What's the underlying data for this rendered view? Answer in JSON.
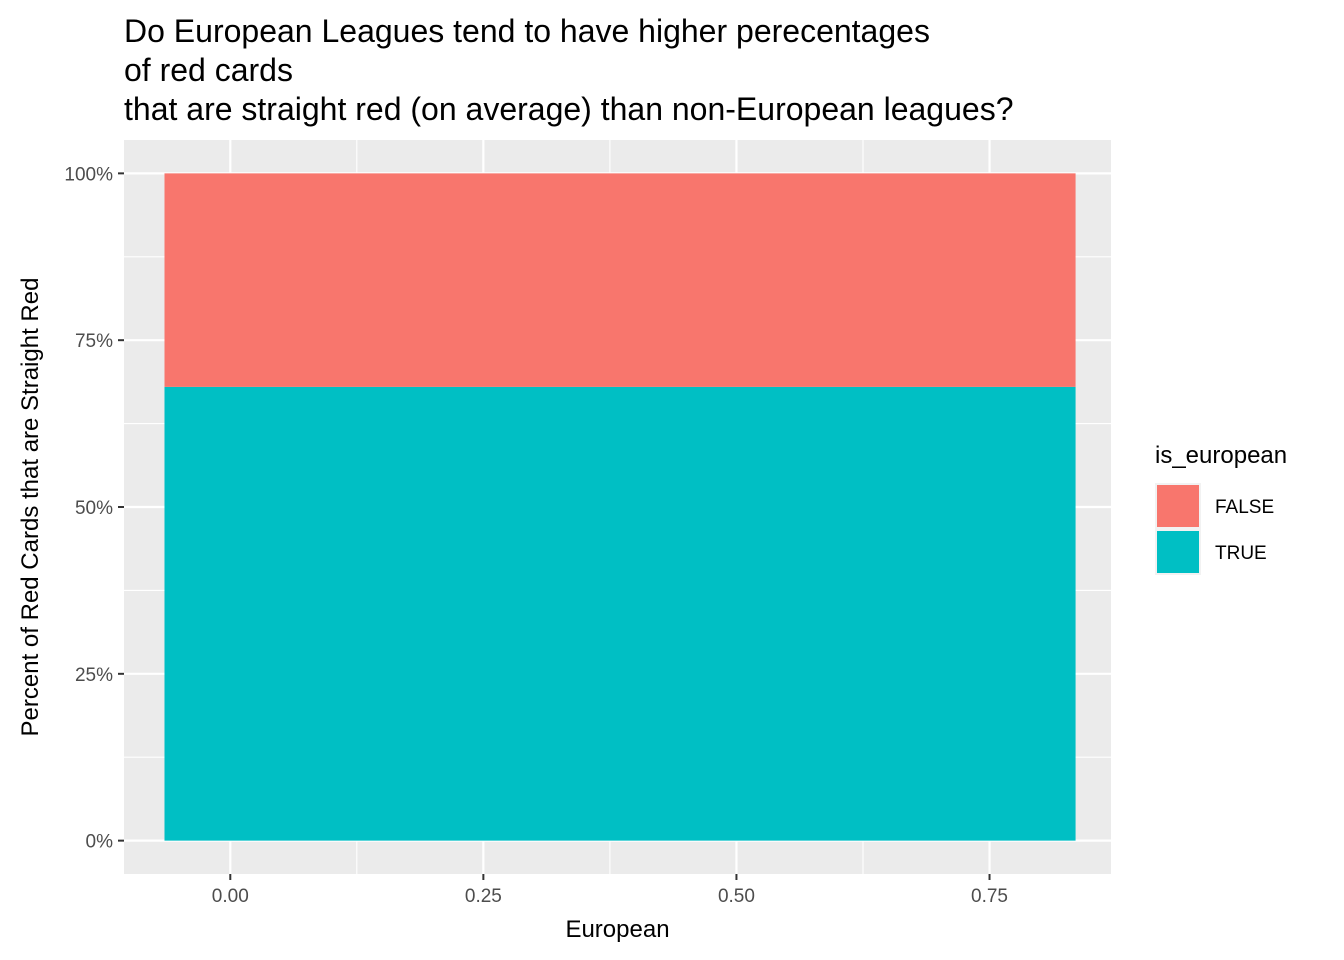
{
  "chart_data": {
    "type": "bar",
    "stacked": true,
    "title_lines": [
      "Do European Leagues tend to have higher perecentages",
      "of red cards",
      "that are straight red (on average) than non-European leagues?"
    ],
    "xlabel": "European",
    "ylabel": "Percent of Red Cards that are Straight Red",
    "xlim": [
      -0.105,
      0.87
    ],
    "ylim": [
      -0.05,
      1.05
    ],
    "x_ticks": [
      {
        "value": 0.0,
        "label": "0.00"
      },
      {
        "value": 0.25,
        "label": "0.25"
      },
      {
        "value": 0.5,
        "label": "0.50"
      },
      {
        "value": 0.75,
        "label": "0.75"
      }
    ],
    "y_ticks": [
      {
        "value": 0.0,
        "label": "0%"
      },
      {
        "value": 0.25,
        "label": "25%"
      },
      {
        "value": 0.5,
        "label": "50%"
      },
      {
        "value": 0.75,
        "label": "75%"
      },
      {
        "value": 1.0,
        "label": "100%"
      }
    ],
    "bar": {
      "x_center": 0.385,
      "width": 0.9
    },
    "series": [
      {
        "name": "TRUE",
        "value": 0.68,
        "color": "#00BFC4"
      },
      {
        "name": "FALSE",
        "value": 0.32,
        "color": "#F8766D"
      }
    ],
    "legend": {
      "title": "is_european",
      "position": "right",
      "entries": [
        {
          "label": "FALSE",
          "color": "#F8766D"
        },
        {
          "label": "TRUE",
          "color": "#00BFC4"
        }
      ]
    },
    "grid": true,
    "panel_background": "#EBEBEB"
  }
}
